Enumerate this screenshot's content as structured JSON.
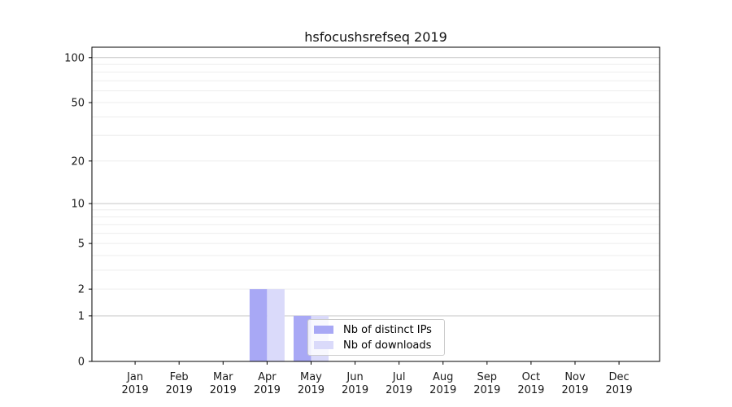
{
  "chart_data": {
    "type": "bar",
    "title": "hsfocushsrefseq 2019",
    "categories": [
      "Jan 2019",
      "Feb 2019",
      "Mar 2019",
      "Apr 2019",
      "May 2019",
      "Jun 2019",
      "Jul 2019",
      "Aug 2019",
      "Sep 2019",
      "Oct 2019",
      "Nov 2019",
      "Dec 2019"
    ],
    "series": [
      {
        "name": "Nb of distinct IPs",
        "color": "#a8a8f5",
        "values": [
          0,
          0,
          0,
          2,
          1,
          0,
          0,
          0,
          0,
          0,
          0,
          0
        ]
      },
      {
        "name": "Nb of downloads",
        "color": "#dadafa",
        "values": [
          0,
          0,
          0,
          2,
          1,
          0,
          0,
          0,
          0,
          0,
          0,
          0
        ]
      }
    ],
    "xlabel": "",
    "ylabel": "",
    "y_scale": "log1p",
    "ylim": [
      0,
      117
    ],
    "y_tick_values": [
      0,
      1,
      2,
      5,
      10,
      20,
      50,
      100
    ],
    "y_tick_labels": [
      "0",
      "1",
      "2",
      "5",
      "10",
      "20",
      "50",
      "100"
    ],
    "y_major_gridlines": [
      1,
      10,
      100
    ],
    "y_minor_gridlines": [
      2,
      3,
      4,
      5,
      6,
      7,
      8,
      9,
      20,
      30,
      40,
      50,
      60,
      70,
      80,
      90
    ],
    "grid": true,
    "legend_location": "inside lower center",
    "colors": {
      "bar_distinct_ips": "#a8a8f5",
      "bar_downloads": "#dadafa",
      "major_grid": "#c6c6c6",
      "minor_grid": "#ededed",
      "spine": "#000000",
      "tick": "#000000",
      "text": "#1a1a1a",
      "legend_border": "#cccccc"
    }
  }
}
